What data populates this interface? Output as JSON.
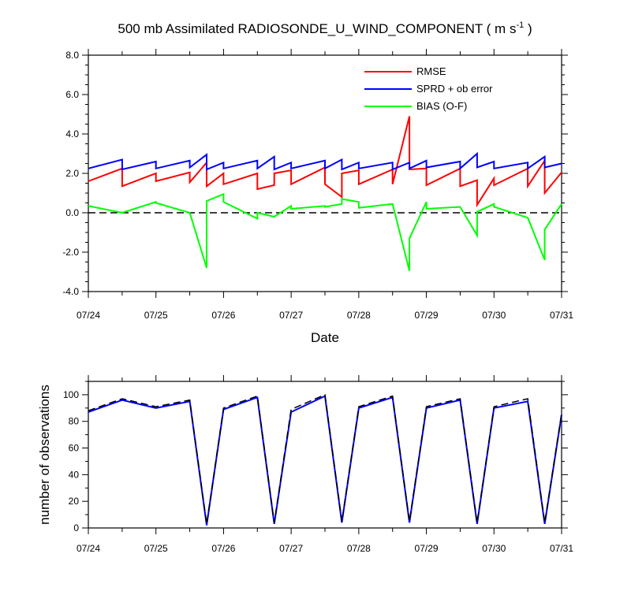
{
  "title": {
    "main": "500 mb Assimilated RADIOSONDE_U_WIND_COMPONENT ( m s",
    "sup": "-1",
    "close": " )"
  },
  "chart_data": [
    {
      "type": "line",
      "title": "500 mb Assimilated RADIOSONDE_U_WIND_COMPONENT ( m s-1 )",
      "xlabel": "Date",
      "ylabel": "",
      "x_ticks": [
        "07/24",
        "07/25",
        "07/26",
        "07/27",
        "07/28",
        "07/29",
        "07/30",
        "07/31"
      ],
      "xlim": [
        0,
        7
      ],
      "ylim": [
        -4,
        8
      ],
      "y_ticks": [
        "-4.0",
        "-2.0",
        "0.0",
        "2.0",
        "4.0",
        "6.0",
        "8.0"
      ],
      "reference_line": {
        "y": 0,
        "style": "dashed"
      },
      "legend_position": "top-right",
      "series": [
        {
          "name": "RMSE",
          "color": "#ff0000",
          "points": [
            [
              0,
              1.6
            ],
            [
              0.5,
              2.25
            ],
            [
              0.5,
              1.35
            ],
            [
              1,
              2.0
            ],
            [
              1,
              1.6
            ],
            [
              1.5,
              2.05
            ],
            [
              1.5,
              1.55
            ],
            [
              1.75,
              2.55
            ],
            [
              1.75,
              1.35
            ],
            [
              2,
              2.0
            ],
            [
              2,
              1.45
            ],
            [
              2.5,
              2.0
            ],
            [
              2.5,
              1.2
            ],
            [
              2.75,
              1.4
            ],
            [
              2.75,
              2.0
            ],
            [
              3,
              2.15
            ],
            [
              3,
              1.45
            ],
            [
              3.5,
              2.3
            ],
            [
              3.5,
              1.45
            ],
            [
              3.75,
              0.8
            ],
            [
              3.75,
              2.0
            ],
            [
              4,
              2.15
            ],
            [
              4,
              1.45
            ],
            [
              4.5,
              2.2
            ],
            [
              4.5,
              1.45
            ],
            [
              4.75,
              4.9
            ],
            [
              4.75,
              2.2
            ],
            [
              5,
              2.25
            ],
            [
              5,
              1.4
            ],
            [
              5.5,
              2.25
            ],
            [
              5.5,
              1.35
            ],
            [
              5.75,
              1.65
            ],
            [
              5.75,
              0.4
            ],
            [
              6,
              1.75
            ],
            [
              6,
              1.4
            ],
            [
              6.5,
              2.25
            ],
            [
              6.5,
              1.35
            ],
            [
              6.75,
              2.65
            ],
            [
              6.75,
              1.0
            ],
            [
              7,
              2.05
            ]
          ]
        },
        {
          "name": "SPRD + ob error",
          "color": "#0000ff",
          "points": [
            [
              0,
              2.25
            ],
            [
              0.5,
              2.7
            ],
            [
              0.5,
              2.2
            ],
            [
              1,
              2.6
            ],
            [
              1,
              2.25
            ],
            [
              1.5,
              2.65
            ],
            [
              1.5,
              2.3
            ],
            [
              1.75,
              2.95
            ],
            [
              1.75,
              2.2
            ],
            [
              2,
              2.55
            ],
            [
              2,
              2.25
            ],
            [
              2.5,
              2.65
            ],
            [
              2.5,
              2.25
            ],
            [
              2.75,
              2.85
            ],
            [
              2.75,
              2.2
            ],
            [
              3,
              2.55
            ],
            [
              3,
              2.25
            ],
            [
              3.5,
              2.65
            ],
            [
              3.5,
              2.25
            ],
            [
              3.75,
              2.7
            ],
            [
              3.75,
              2.2
            ],
            [
              4,
              2.55
            ],
            [
              4,
              2.25
            ],
            [
              4.5,
              2.55
            ],
            [
              4.5,
              2.2
            ],
            [
              4.75,
              2.55
            ],
            [
              4.75,
              2.25
            ],
            [
              5,
              2.65
            ],
            [
              5,
              2.3
            ],
            [
              5.5,
              2.6
            ],
            [
              5.5,
              2.25
            ],
            [
              5.75,
              3.0
            ],
            [
              5.75,
              2.3
            ],
            [
              6,
              2.6
            ],
            [
              6,
              2.25
            ],
            [
              6.5,
              2.55
            ],
            [
              6.5,
              2.25
            ],
            [
              6.75,
              2.85
            ],
            [
              6.75,
              2.3
            ],
            [
              7,
              2.5
            ]
          ]
        },
        {
          "name": "BIAS (O-F)",
          "color": "#00ff00",
          "points": [
            [
              0,
              0.35
            ],
            [
              0.5,
              0.0
            ],
            [
              1,
              0.55
            ],
            [
              1,
              0.5
            ],
            [
              1.5,
              0.0
            ],
            [
              1.75,
              -2.8
            ],
            [
              1.75,
              0.6
            ],
            [
              2,
              0.95
            ],
            [
              2,
              0.55
            ],
            [
              2.5,
              -0.3
            ],
            [
              2.5,
              0.0
            ],
            [
              2.75,
              -0.2
            ],
            [
              3,
              0.35
            ],
            [
              3,
              0.2
            ],
            [
              3.5,
              0.35
            ],
            [
              3.5,
              0.3
            ],
            [
              3.75,
              0.45
            ],
            [
              3.75,
              0.7
            ],
            [
              4,
              0.55
            ],
            [
              4,
              0.25
            ],
            [
              4.5,
              0.45
            ],
            [
              4.75,
              -2.95
            ],
            [
              4.75,
              -1.3
            ],
            [
              5,
              0.55
            ],
            [
              5,
              0.2
            ],
            [
              5.5,
              0.3
            ],
            [
              5.75,
              -1.15
            ],
            [
              5.75,
              0.05
            ],
            [
              6,
              0.45
            ],
            [
              6,
              0.3
            ],
            [
              6.5,
              -0.25
            ],
            [
              6.75,
              -2.4
            ],
            [
              6.75,
              -0.85
            ],
            [
              7,
              0.45
            ]
          ]
        }
      ]
    },
    {
      "type": "line",
      "title": "",
      "xlabel": "",
      "ylabel": "number of observations",
      "x_ticks": [
        "07/24",
        "07/25",
        "07/26",
        "07/27",
        "07/28",
        "07/29",
        "07/30",
        "07/31"
      ],
      "xlim": [
        0,
        7
      ],
      "ylim": [
        0,
        110
      ],
      "y_ticks": [
        "0",
        "20",
        "40",
        "60",
        "80",
        "100"
      ],
      "series": [
        {
          "color": "#0000ff",
          "style": "solid",
          "points": [
            [
              0,
              87
            ],
            [
              0.5,
              96
            ],
            [
              1,
              90
            ],
            [
              1.5,
              95
            ],
            [
              1.75,
              2
            ],
            [
              2,
              89
            ],
            [
              2.5,
              98
            ],
            [
              2.75,
              3
            ],
            [
              3,
              87
            ],
            [
              3.5,
              99
            ],
            [
              3.75,
              4
            ],
            [
              4,
              90
            ],
            [
              4.5,
              98
            ],
            [
              4.75,
              4
            ],
            [
              5,
              90
            ],
            [
              5.5,
              96
            ],
            [
              5.75,
              3
            ],
            [
              6,
              90
            ],
            [
              6.5,
              95
            ],
            [
              6.75,
              3
            ],
            [
              7,
              85
            ]
          ]
        },
        {
          "color": "#000000",
          "style": "dashed",
          "points": [
            [
              0,
              88
            ],
            [
              0.5,
              97
            ],
            [
              1,
              91
            ],
            [
              1.5,
              96
            ],
            [
              1.75,
              3
            ],
            [
              2,
              90
            ],
            [
              2.5,
              99
            ],
            [
              2.75,
              4
            ],
            [
              3,
              89
            ],
            [
              3.5,
              100
            ],
            [
              3.75,
              5
            ],
            [
              4,
              91
            ],
            [
              4.5,
              99
            ],
            [
              4.75,
              5
            ],
            [
              5,
              91
            ],
            [
              5.5,
              97
            ],
            [
              5.75,
              4
            ],
            [
              6,
              91
            ],
            [
              6.5,
              97
            ],
            [
              6.75,
              4
            ],
            [
              7,
              86
            ]
          ]
        }
      ]
    }
  ]
}
